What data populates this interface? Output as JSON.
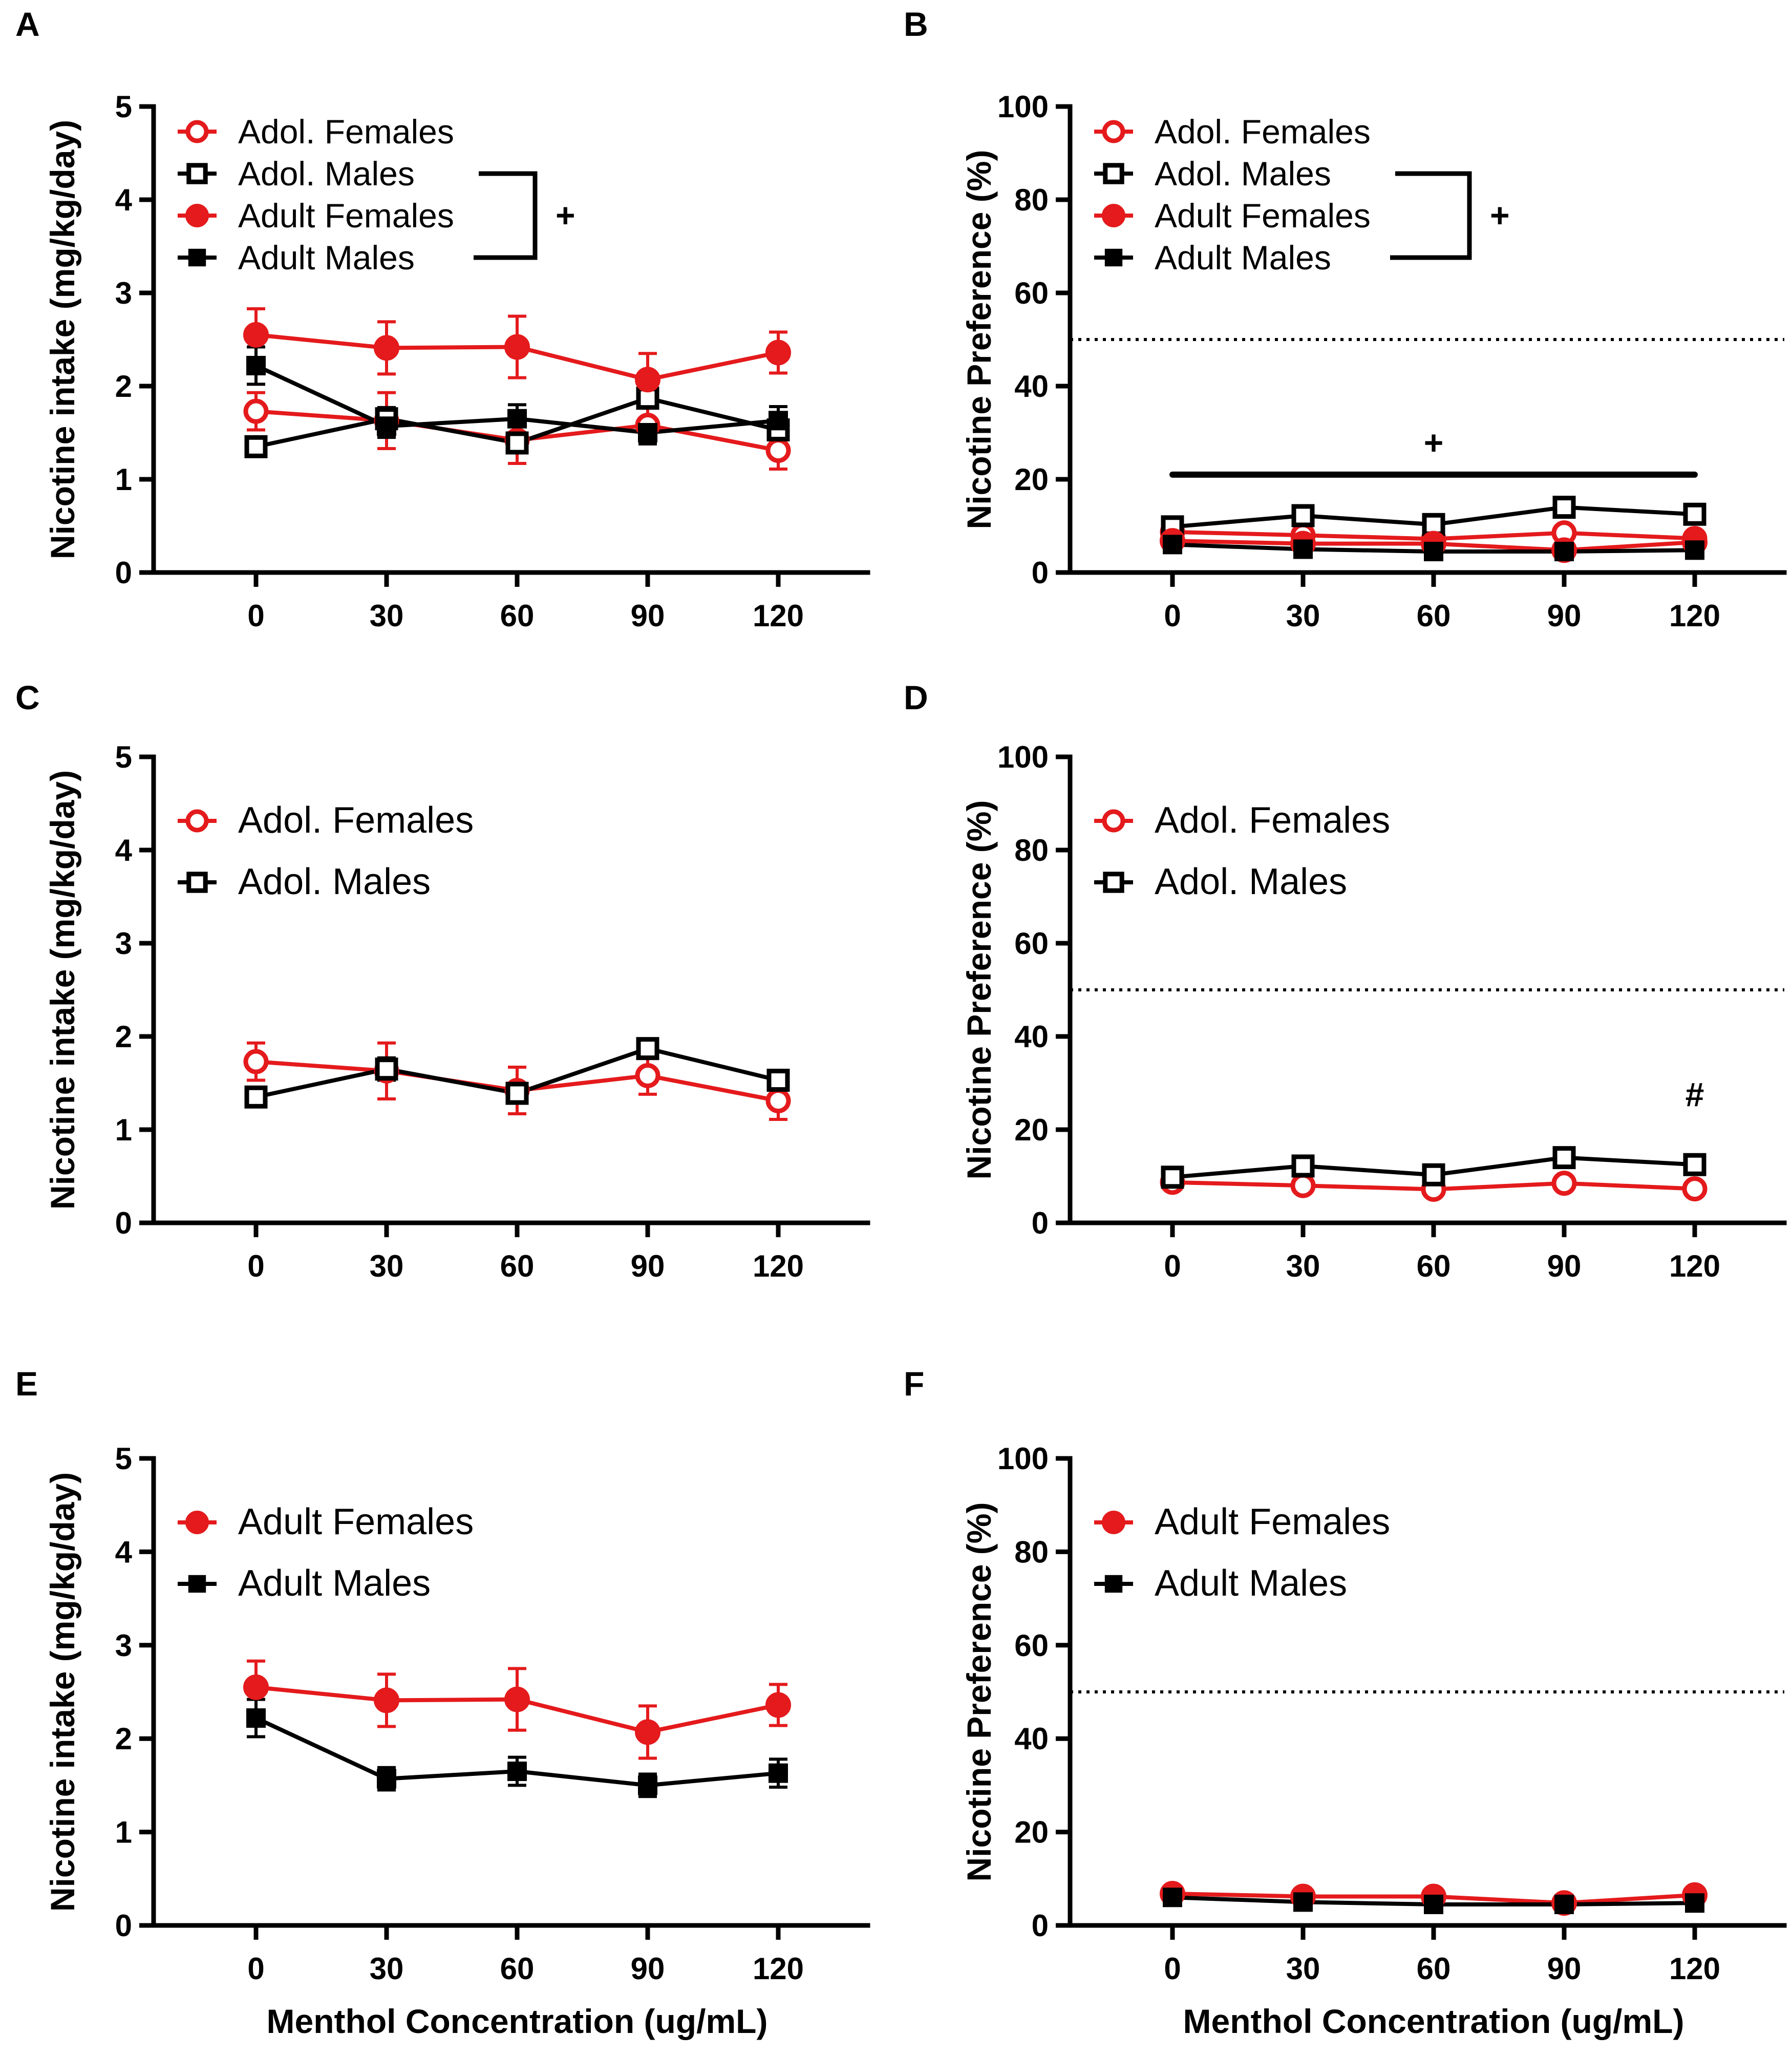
{
  "figure": {
    "x_axis_title": "Menthol Concentration (ug/mL)"
  },
  "chart_data": [
    {
      "id": "A",
      "panel_label": "A",
      "type": "line",
      "x": [
        0,
        30,
        60,
        90,
        120
      ],
      "x_tick_labels": [
        "0",
        "30",
        "60",
        "90",
        "120"
      ],
      "y_ticks": [
        "0",
        "1",
        "2",
        "3",
        "4",
        "5"
      ],
      "ylim": [
        0,
        5
      ],
      "ylabel": "Nicotine intake (mg/kg/day)",
      "xlabel": "",
      "legend_position": "top-left",
      "series": [
        {
          "name": "Adol. Females",
          "color": "#e41a1c",
          "marker": "circle-open",
          "values": [
            1.73,
            1.63,
            1.42,
            1.58,
            1.31
          ],
          "errors": [
            0.2,
            0.3,
            0.25,
            0.2,
            0.2
          ]
        },
        {
          "name": "Adol. Males",
          "color": "#000000",
          "marker": "square-open",
          "values": [
            1.35,
            1.65,
            1.39,
            1.87,
            1.53
          ],
          "errors": [
            0.05,
            0.12,
            0.06,
            0.08,
            0.05
          ]
        },
        {
          "name": "Adult Females",
          "color": "#e41a1c",
          "marker": "circle-filled",
          "values": [
            2.55,
            2.41,
            2.42,
            2.07,
            2.36
          ],
          "errors": [
            0.28,
            0.28,
            0.33,
            0.28,
            0.22
          ]
        },
        {
          "name": "Adult Males",
          "color": "#000000",
          "marker": "square-filled",
          "values": [
            2.22,
            1.57,
            1.65,
            1.5,
            1.63
          ],
          "errors": [
            0.2,
            0.12,
            0.15,
            0.12,
            0.15
          ]
        }
      ],
      "bracket": {
        "series": [
          "Adol. Males",
          "Adult Males"
        ],
        "symbol": "+"
      }
    },
    {
      "id": "B",
      "panel_label": "B",
      "type": "line",
      "x": [
        0,
        30,
        60,
        90,
        120
      ],
      "x_tick_labels": [
        "0",
        "30",
        "60",
        "90",
        "120"
      ],
      "y_ticks": [
        "0",
        "20",
        "40",
        "60",
        "80",
        "100"
      ],
      "ylim": [
        0,
        100
      ],
      "ylabel": "Nicotine Preference (%)",
      "xlabel": "",
      "legend_position": "top-left",
      "reference_line": 50,
      "series": [
        {
          "name": "Adol. Females",
          "color": "#e41a1c",
          "marker": "circle-open",
          "values": [
            8.7,
            8.0,
            7.2,
            8.5,
            7.3
          ],
          "errors": [
            0,
            0,
            0,
            0,
            0
          ]
        },
        {
          "name": "Adol. Males",
          "color": "#000000",
          "marker": "square-open",
          "values": [
            9.8,
            12.2,
            10.3,
            14.0,
            12.5
          ],
          "errors": [
            0,
            0,
            0,
            0,
            0
          ]
        },
        {
          "name": "Adult Females",
          "color": "#e41a1c",
          "marker": "circle-filled",
          "values": [
            6.8,
            6.2,
            6.2,
            4.8,
            6.5
          ],
          "errors": [
            0,
            0,
            0,
            0,
            0
          ]
        },
        {
          "name": "Adult Males",
          "color": "#000000",
          "marker": "square-filled",
          "values": [
            6.0,
            5.0,
            4.5,
            4.5,
            4.8
          ],
          "errors": [
            0,
            0,
            0,
            0,
            0
          ]
        }
      ],
      "bracket": {
        "series": [
          "Adol. Males",
          "Adult Males"
        ],
        "symbol": "+"
      },
      "significance_bar": {
        "x_from": 0,
        "x_to": 120,
        "y": 21,
        "symbol": "+"
      }
    },
    {
      "id": "C",
      "panel_label": "C",
      "type": "line",
      "x": [
        0,
        30,
        60,
        90,
        120
      ],
      "x_tick_labels": [
        "0",
        "30",
        "60",
        "90",
        "120"
      ],
      "y_ticks": [
        "0",
        "1",
        "2",
        "3",
        "4",
        "5"
      ],
      "ylim": [
        0,
        5
      ],
      "ylabel": "Nicotine intake (mg/kg/day)",
      "xlabel": "",
      "legend_position": "top-left",
      "series": [
        {
          "name": "Adol. Females",
          "color": "#e41a1c",
          "marker": "circle-open",
          "values": [
            1.73,
            1.63,
            1.42,
            1.58,
            1.31
          ],
          "errors": [
            0.2,
            0.3,
            0.25,
            0.2,
            0.2
          ]
        },
        {
          "name": "Adol. Males",
          "color": "#000000",
          "marker": "square-open",
          "values": [
            1.35,
            1.65,
            1.39,
            1.87,
            1.53
          ],
          "errors": [
            0.05,
            0.12,
            0.06,
            0.08,
            0.05
          ]
        }
      ]
    },
    {
      "id": "D",
      "panel_label": "D",
      "type": "line",
      "x": [
        0,
        30,
        60,
        90,
        120
      ],
      "x_tick_labels": [
        "0",
        "30",
        "60",
        "90",
        "120"
      ],
      "y_ticks": [
        "0",
        "20",
        "40",
        "60",
        "80",
        "100"
      ],
      "ylim": [
        0,
        100
      ],
      "ylabel": "Nicotine Preference (%)",
      "xlabel": "",
      "legend_position": "top-left",
      "reference_line": 50,
      "series": [
        {
          "name": "Adol. Females",
          "color": "#e41a1c",
          "marker": "circle-open",
          "values": [
            8.7,
            8.0,
            7.2,
            8.5,
            7.3
          ],
          "errors": [
            0,
            0,
            0,
            0,
            0
          ]
        },
        {
          "name": "Adol. Males",
          "color": "#000000",
          "marker": "square-open",
          "values": [
            9.8,
            12.2,
            10.3,
            14.0,
            12.5
          ],
          "errors": [
            0,
            0,
            0,
            0,
            0
          ]
        }
      ],
      "point_annotation": {
        "x": 120,
        "y": 25,
        "symbol": "#"
      }
    },
    {
      "id": "E",
      "panel_label": "E",
      "type": "line",
      "x": [
        0,
        30,
        60,
        90,
        120
      ],
      "x_tick_labels": [
        "0",
        "30",
        "60",
        "90",
        "120"
      ],
      "y_ticks": [
        "0",
        "1",
        "2",
        "3",
        "4",
        "5"
      ],
      "ylim": [
        0,
        5
      ],
      "ylabel": "Nicotine intake (mg/kg/day)",
      "xlabel": "Menthol Concentration (ug/mL)",
      "legend_position": "top-left",
      "series": [
        {
          "name": "Adult Females",
          "color": "#e41a1c",
          "marker": "circle-filled",
          "values": [
            2.55,
            2.41,
            2.42,
            2.07,
            2.36
          ],
          "errors": [
            0.28,
            0.28,
            0.33,
            0.28,
            0.22
          ]
        },
        {
          "name": "Adult Males",
          "color": "#000000",
          "marker": "square-filled",
          "values": [
            2.22,
            1.57,
            1.65,
            1.5,
            1.63
          ],
          "errors": [
            0.2,
            0.12,
            0.15,
            0.12,
            0.15
          ]
        }
      ]
    },
    {
      "id": "F",
      "panel_label": "F",
      "type": "line",
      "x": [
        0,
        30,
        60,
        90,
        120
      ],
      "x_tick_labels": [
        "0",
        "30",
        "60",
        "90",
        "120"
      ],
      "y_ticks": [
        "0",
        "20",
        "40",
        "60",
        "80",
        "100"
      ],
      "ylim": [
        0,
        100
      ],
      "ylabel": "Nicotine Preference (%)",
      "xlabel": "Menthol Concentration (ug/mL)",
      "legend_position": "top-left",
      "reference_line": 50,
      "series": [
        {
          "name": "Adult Females",
          "color": "#e41a1c",
          "marker": "circle-filled",
          "values": [
            6.8,
            6.2,
            6.2,
            4.8,
            6.5
          ],
          "errors": [
            0,
            0,
            0,
            0,
            0
          ]
        },
        {
          "name": "Adult Males",
          "color": "#000000",
          "marker": "square-filled",
          "values": [
            6.0,
            5.0,
            4.5,
            4.5,
            4.8
          ],
          "errors": [
            0,
            0,
            0,
            0,
            0
          ]
        }
      ]
    }
  ]
}
